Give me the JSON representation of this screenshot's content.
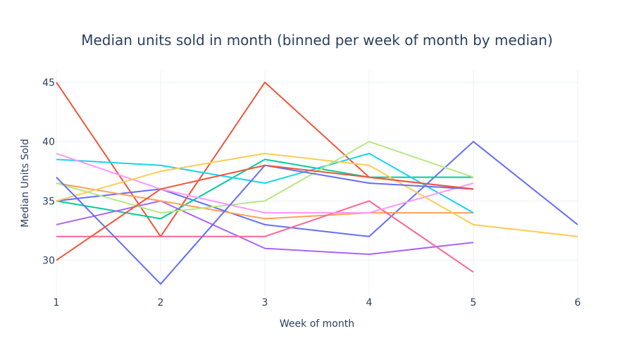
{
  "chart_data": {
    "type": "line",
    "title": "Median units sold in month (binned per week of month by median)",
    "xlabel": "Week of month",
    "ylabel": "Median Units Sold",
    "xlim": [
      1,
      6
    ],
    "ylim": [
      27,
      46
    ],
    "x_ticks": [
      1,
      2,
      3,
      4,
      5,
      6
    ],
    "y_ticks": [
      30,
      35,
      40,
      45
    ],
    "grid": true,
    "legend": "none",
    "series": [
      {
        "color": "#636efa",
        "x": [
          1,
          2,
          3,
          4,
          5,
          6
        ],
        "y": [
          35,
          36,
          33,
          32,
          40,
          33
        ]
      },
      {
        "color": "#ef553b",
        "x": [
          1,
          2,
          3,
          4,
          5
        ],
        "y": [
          45,
          32,
          45,
          37,
          36
        ]
      },
      {
        "color": "#00cc96",
        "x": [
          1,
          2,
          3,
          4,
          5
        ],
        "y": [
          35,
          33.5,
          38.5,
          37,
          37
        ]
      },
      {
        "color": "#ab63fa",
        "x": [
          1,
          2,
          3,
          4,
          5
        ],
        "y": [
          33,
          35,
          31,
          30.5,
          31.5
        ]
      },
      {
        "color": "#ffa15a",
        "x": [
          1,
          2,
          3,
          4,
          5
        ],
        "y": [
          36.5,
          35,
          33.5,
          34,
          34
        ]
      },
      {
        "color": "#19d3f3",
        "x": [
          1,
          2,
          3,
          4,
          5
        ],
        "y": [
          38.5,
          38,
          36.5,
          39,
          34
        ]
      },
      {
        "color": "#ff6692",
        "x": [
          1,
          2,
          3,
          4,
          5
        ],
        "y": [
          32,
          32,
          32,
          35,
          29
        ]
      },
      {
        "color": "#b6e880",
        "x": [
          1,
          2,
          3,
          4,
          5
        ],
        "y": [
          36.5,
          34,
          35,
          40,
          37
        ]
      },
      {
        "color": "#ff97ff",
        "x": [
          1,
          2,
          3,
          4,
          5
        ],
        "y": [
          39,
          36,
          34,
          34,
          36.5
        ]
      },
      {
        "color": "#fecb52",
        "x": [
          1,
          2,
          3,
          4,
          5,
          6
        ],
        "y": [
          35,
          37.5,
          39,
          38,
          33,
          32
        ]
      },
      {
        "color": "#636efa",
        "x": [
          1,
          2,
          3,
          4,
          5
        ],
        "y": [
          37,
          28,
          38,
          36.5,
          36
        ]
      },
      {
        "color": "#ef553b",
        "x": [
          1,
          2,
          3,
          4,
          5
        ],
        "y": [
          30,
          36,
          38,
          37,
          36
        ]
      }
    ]
  }
}
